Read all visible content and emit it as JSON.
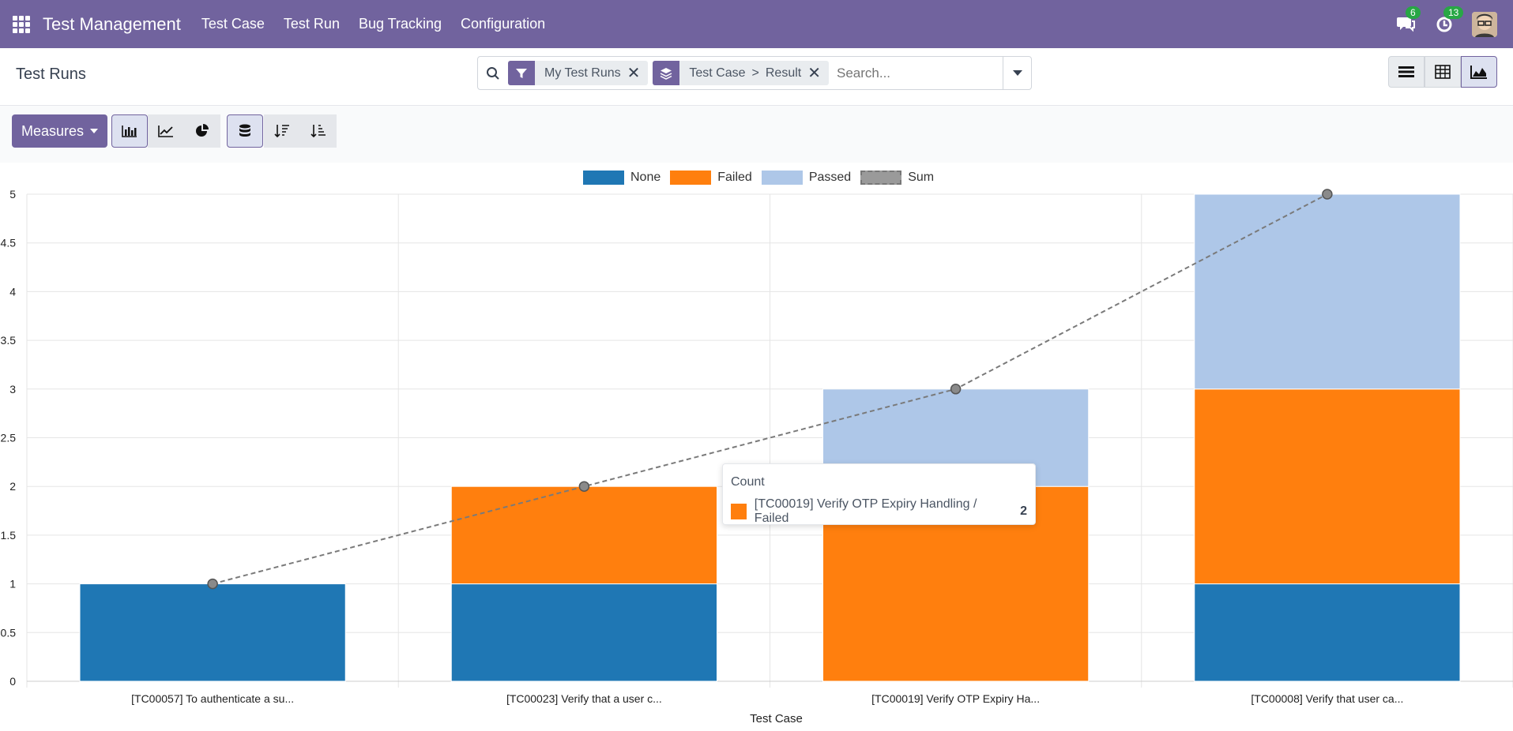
{
  "navbar": {
    "brand": "Test Management",
    "menu": [
      "Test Case",
      "Test Run",
      "Bug Tracking",
      "Configuration"
    ],
    "messages_badge": "6",
    "activities_badge": "13",
    "accent_color": "#71639e"
  },
  "control_panel": {
    "title": "Test Runs",
    "facets": [
      {
        "icon": "filter-icon",
        "label": "My Test Runs"
      },
      {
        "icon": "group-by-icon",
        "label_parts": [
          "Test Case",
          ">",
          "Result"
        ]
      }
    ],
    "search_placeholder": "Search...",
    "views": [
      "list-view-icon",
      "pivot-view-icon",
      "graph-view-icon"
    ],
    "active_view": "graph"
  },
  "toolbar": {
    "measures_label": "Measures",
    "chart_modes": [
      "bar-chart-icon",
      "line-chart-icon",
      "pie-chart-icon"
    ],
    "active_mode": "bar",
    "stacked_active": true,
    "sort_buttons": [
      "sort-descending-icon",
      "sort-ascending-icon"
    ]
  },
  "chart_data": {
    "type": "bar",
    "stacked": true,
    "categories": [
      "[TC00057] To authenticate a su...",
      "[TC00023] Verify that a user c...",
      "[TC00019] Verify OTP Expiry Ha...",
      "[TC00008] Verify that  user ca..."
    ],
    "series": [
      {
        "name": "None",
        "color": "#1f77b4",
        "values": [
          1,
          1,
          0,
          1
        ]
      },
      {
        "name": "Failed",
        "color": "#ff7f0e",
        "values": [
          0,
          1,
          2,
          2
        ]
      },
      {
        "name": "Passed",
        "color": "#aec7e8",
        "values": [
          0,
          0,
          1,
          2
        ]
      }
    ],
    "line_series": {
      "name": "Sum",
      "values": [
        1,
        2,
        3,
        5
      ]
    },
    "xlabel": "Test Case",
    "ylabel": "",
    "ylim": [
      0,
      5
    ],
    "yticks": [
      "0",
      "0.5",
      "1",
      "1.5",
      "2",
      "2.5",
      "3",
      "3.5",
      "4",
      "4.5",
      "5"
    ],
    "legend_position": "top",
    "grid": true
  },
  "tooltip": {
    "title": "Count",
    "label": "[TC00019] Verify OTP Expiry Handling / Failed",
    "value": "2"
  }
}
